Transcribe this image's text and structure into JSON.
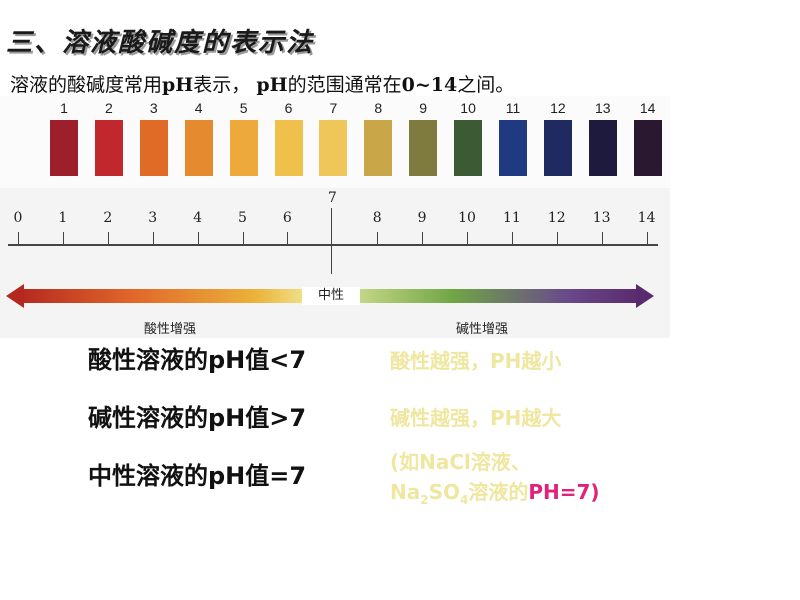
{
  "title": "三、溶液酸碱度的表示法",
  "intro": {
    "part1": "溶液的酸碱度常用",
    "ph1": "pH",
    "part2": "表示，",
    "ph2": "pH",
    "part3": "的范围通常在",
    "range": "0~14",
    "part4": "之间。"
  },
  "strip": {
    "numbers": [
      "1",
      "2",
      "3",
      "4",
      "5",
      "6",
      "7",
      "8",
      "9",
      "10",
      "11",
      "12",
      "13",
      "14"
    ],
    "colors": [
      "#9c1f2b",
      "#c0282e",
      "#df6b27",
      "#e58a2e",
      "#eea93c",
      "#f0c04c",
      "#eec65a",
      "#c9a648",
      "#7f7a3e",
      "#3c5a34",
      "#203a82",
      "#1f2b60",
      "#1e1a3e",
      "#2a1730"
    ]
  },
  "scale": {
    "numbers": [
      "0",
      "1",
      "2",
      "3",
      "4",
      "5",
      "6",
      "7",
      "8",
      "9",
      "10",
      "11",
      "12",
      "13",
      "14"
    ],
    "neutral": "中性",
    "acid_stronger": "酸性增强",
    "base_stronger": "碱性增强"
  },
  "statements": {
    "acid": "酸性溶液的pH值<7",
    "base": "碱性溶液的pH值>7",
    "neutral": "中性溶液的pH值=7"
  },
  "notes": {
    "acid": "酸性越强，PH越小",
    "base": "碱性越强，PH越大",
    "example_line1": "(如NaCl溶液、",
    "example_na": "Na",
    "example_sub2": "2",
    "example_so": "SO",
    "example_sub4": "4",
    "example_rest": "溶液的",
    "example_ph": "PH=7)"
  }
}
